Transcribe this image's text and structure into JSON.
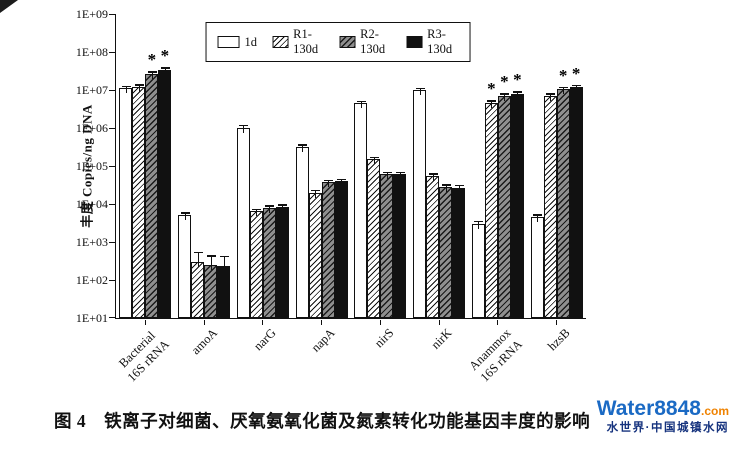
{
  "chart_data": {
    "type": "bar",
    "scale": "log",
    "title": "",
    "ylabel": "丰度 Copies/ng DNA",
    "ylim": [
      "1E+01",
      "1E+09"
    ],
    "y_tick_labels": [
      "1E+09",
      "1E+08",
      "1E+07",
      "1E+06",
      "1E+05",
      "1E+04",
      "1E+03",
      "1E+02",
      "1E+01"
    ],
    "legend_position": "top-center",
    "grid": false,
    "star_symbol": "*",
    "categories": [
      "Bacterial\n16S rRNA",
      "amoA",
      "narG",
      "napA",
      "nirS",
      "nirK",
      "Anammox\n16S rRNA",
      "hzsB"
    ],
    "series": [
      {
        "name": "1d",
        "fill": "white",
        "values": [
          11000000.0,
          5000.0,
          1000000.0,
          320000.0,
          4500000.0,
          10000000.0,
          3000.0,
          4500.0
        ],
        "err_hi": [
          13000000.0,
          6000.0,
          1200000.0,
          370000.0,
          5200000.0,
          11500000.0,
          3600.0,
          5300.0
        ]
      },
      {
        "name": "R1-130d",
        "fill": "hatch-light",
        "values": [
          12000000.0,
          300.0,
          6500.0,
          20000.0,
          150000.0,
          55000.0,
          4500000.0,
          7000000.0
        ],
        "err_hi": [
          14000000.0,
          550.0,
          7600.0,
          23500.0,
          175000.0,
          64000.0,
          5300000.0,
          8200000.0
        ]
      },
      {
        "name": "R2-130d",
        "fill": "hatch-dark",
        "values": [
          26000000.0,
          250.0,
          8000.0,
          38000.0,
          60000.0,
          28000.0,
          7000000.0,
          10500000.0
        ],
        "err_hi": [
          31000000.0,
          450.0,
          9300.0,
          44000.0,
          70000.0,
          33000.0,
          8200000.0,
          12000000.0
        ]
      },
      {
        "name": "R3-130d",
        "fill": "black",
        "values": [
          34000000.0,
          240.0,
          8500.0,
          40000.0,
          60000.0,
          27000.0,
          8000000.0,
          12000000.0
        ],
        "err_hi": [
          40000000.0,
          440.0,
          9900.0,
          46000.0,
          70000.0,
          32000.0,
          9300000.0,
          13800000.0
        ]
      }
    ],
    "significance_stars": [
      [
        2,
        3
      ],
      [],
      [],
      [],
      [],
      [],
      [
        1,
        2,
        3
      ],
      [
        2,
        3
      ]
    ]
  },
  "caption": {
    "text": "图 4　铁离子对细菌、厌氧氨氧化菌及氮素转化功能基因丰度的影响"
  },
  "watermark": {
    "brand": "Water8848",
    "dot_com": ".com",
    "subtitle": "水世界·中国城镇水网"
  }
}
